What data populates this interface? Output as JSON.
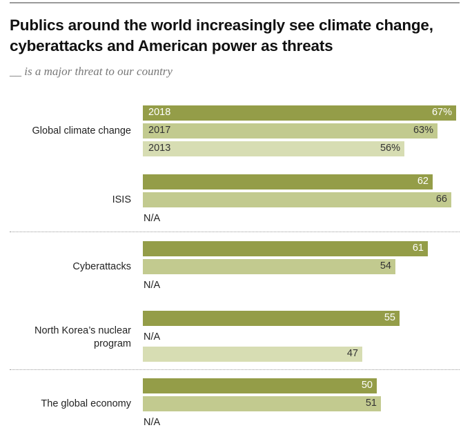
{
  "title": "Publics around the world increasingly see climate change, cyberattacks and American power as threats",
  "subtitle": "__ is a major threat to our country",
  "colors": {
    "2018": "#949d48",
    "2017": "#c2ca8f",
    "2013": "#d7ddb3"
  },
  "chart_data": {
    "type": "bar",
    "orientation": "horizontal",
    "title": "Publics around the world increasingly see climate change, cyberattacks and American power as threats",
    "subtitle": "__ is a major threat to our country",
    "unit": "%",
    "series_years": [
      "2018",
      "2017",
      "2013"
    ],
    "categories": [
      {
        "label": "Global climate change",
        "values": [
          67,
          63,
          56
        ],
        "labels": [
          "67%",
          "63%",
          "56%"
        ],
        "show_years": true
      },
      {
        "label": "ISIS",
        "values": [
          62,
          66,
          null
        ],
        "labels": [
          "62",
          "66",
          "N/A"
        ]
      },
      {
        "label": "Cyberattacks",
        "values": [
          61,
          54,
          null
        ],
        "labels": [
          "61",
          "54",
          "N/A"
        ]
      },
      {
        "label": "North Korea’s nuclear program",
        "values": [
          55,
          null,
          47
        ],
        "labels": [
          "55",
          "N/A",
          "47"
        ]
      },
      {
        "label": "The global economy",
        "values": [
          50,
          51,
          null
        ],
        "labels": [
          "50",
          "51",
          "N/A"
        ]
      }
    ],
    "xlim": [
      0,
      100
    ]
  }
}
